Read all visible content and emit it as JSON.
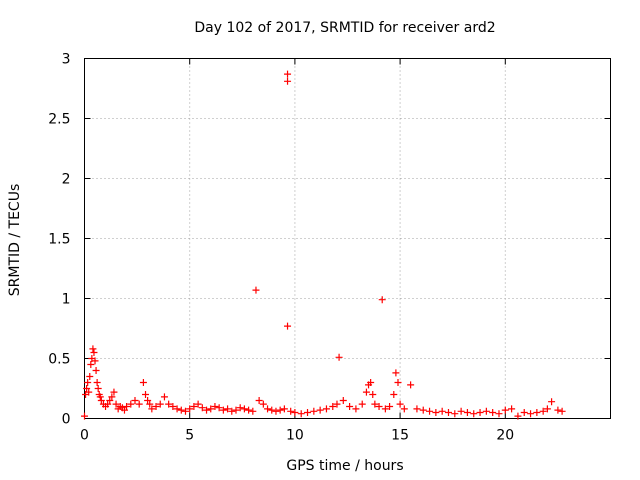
{
  "chart_data": {
    "type": "scatter",
    "title": "Day 102 of 2017, SRMTID for receiver ard2",
    "xlabel": "GPS time / hours",
    "ylabel": "SRMTID / TECUs",
    "xlim": [
      0,
      25
    ],
    "ylim": [
      0,
      3
    ],
    "xticks": [
      0,
      5,
      10,
      15,
      20
    ],
    "xtick_labels": [
      "0",
      "5",
      "10",
      "15",
      "20"
    ],
    "yticks": [
      0,
      0.5,
      1,
      1.5,
      2,
      2.5,
      3
    ],
    "ytick_labels": [
      "0",
      "0.5",
      "1",
      "1.5",
      "2",
      "2.5",
      "3"
    ],
    "grid": true,
    "marker": "+",
    "color": "#ff0000",
    "series": [
      {
        "name": "SRMTID",
        "x": [
          0.0,
          0.05,
          0.1,
          0.15,
          0.2,
          0.25,
          0.3,
          0.35,
          0.4,
          0.45,
          0.5,
          0.55,
          0.6,
          0.65,
          0.7,
          0.75,
          0.8,
          0.9,
          1.0,
          1.1,
          1.2,
          1.3,
          1.4,
          1.5,
          1.6,
          1.7,
          1.8,
          1.9,
          2.0,
          2.2,
          2.4,
          2.6,
          2.8,
          2.9,
          3.0,
          3.1,
          3.2,
          3.4,
          3.6,
          3.8,
          4.0,
          4.2,
          4.4,
          4.6,
          4.8,
          5.0,
          5.2,
          5.4,
          5.6,
          5.8,
          6.0,
          6.2,
          6.4,
          6.6,
          6.8,
          7.0,
          7.2,
          7.4,
          7.6,
          7.8,
          8.0,
          8.15,
          8.3,
          8.5,
          8.7,
          8.9,
          9.1,
          9.3,
          9.5,
          9.65,
          9.65,
          9.65,
          9.8,
          10.0,
          10.3,
          10.6,
          10.9,
          11.2,
          11.5,
          11.8,
          12.0,
          12.1,
          12.3,
          12.6,
          12.9,
          13.2,
          13.4,
          13.5,
          13.6,
          13.7,
          13.8,
          14.0,
          14.15,
          14.3,
          14.5,
          14.7,
          14.8,
          14.9,
          15.0,
          15.2,
          15.5,
          15.8,
          16.1,
          16.4,
          16.7,
          17.0,
          17.3,
          17.6,
          17.9,
          18.2,
          18.5,
          18.8,
          19.1,
          19.4,
          19.7,
          20.0,
          20.3,
          20.6,
          20.9,
          21.2,
          21.5,
          21.8,
          22.0,
          22.2,
          22.5,
          22.7
        ],
        "y": [
          0.02,
          0.2,
          0.25,
          0.3,
          0.22,
          0.35,
          0.45,
          0.5,
          0.58,
          0.55,
          0.48,
          0.4,
          0.3,
          0.25,
          0.2,
          0.18,
          0.15,
          0.12,
          0.1,
          0.12,
          0.15,
          0.18,
          0.22,
          0.12,
          0.08,
          0.1,
          0.09,
          0.07,
          0.1,
          0.12,
          0.15,
          0.12,
          0.3,
          0.2,
          0.15,
          0.12,
          0.08,
          0.1,
          0.12,
          0.18,
          0.12,
          0.1,
          0.08,
          0.07,
          0.06,
          0.08,
          0.1,
          0.12,
          0.09,
          0.07,
          0.08,
          0.1,
          0.09,
          0.07,
          0.08,
          0.06,
          0.07,
          0.09,
          0.08,
          0.07,
          0.06,
          1.07,
          0.15,
          0.12,
          0.08,
          0.07,
          0.06,
          0.07,
          0.08,
          2.87,
          2.81,
          0.77,
          0.06,
          0.05,
          0.04,
          0.05,
          0.06,
          0.07,
          0.08,
          0.1,
          0.12,
          0.51,
          0.15,
          0.1,
          0.08,
          0.12,
          0.22,
          0.28,
          0.3,
          0.2,
          0.12,
          0.1,
          0.99,
          0.08,
          0.1,
          0.2,
          0.38,
          0.3,
          0.12,
          0.08,
          0.28,
          0.08,
          0.07,
          0.06,
          0.05,
          0.06,
          0.05,
          0.04,
          0.06,
          0.05,
          0.04,
          0.05,
          0.06,
          0.05,
          0.04,
          0.07,
          0.08,
          0.02,
          0.05,
          0.04,
          0.05,
          0.06,
          0.08,
          0.14,
          0.07,
          0.06
        ]
      }
    ]
  }
}
